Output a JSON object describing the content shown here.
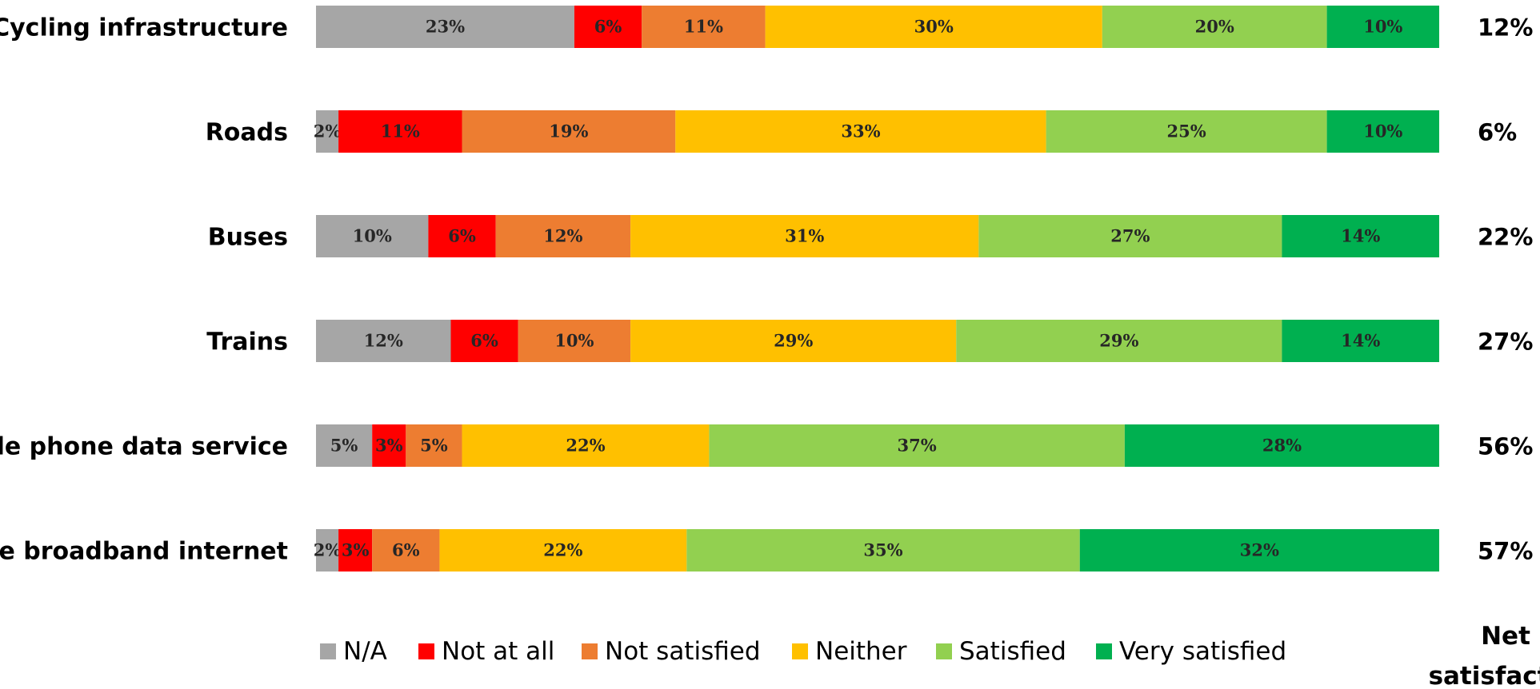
{
  "chart_data": {
    "type": "bar",
    "orientation": "horizontal",
    "stacked": true,
    "percent_stacked": true,
    "categories": [
      "Cycling infrastructure",
      "Roads",
      "Buses",
      "Trains",
      "Mobile phone data service",
      "Home broadband internet"
    ],
    "series": [
      {
        "name": "N/A",
        "color": "#a6a6a6",
        "labels": [
          "23%",
          "2%",
          "10%",
          "12%",
          "5%",
          "2%"
        ],
        "values": [
          23,
          2,
          10,
          12,
          5,
          2
        ]
      },
      {
        "name": "Not at all",
        "color": "#ff0000",
        "labels": [
          "6%",
          "11%",
          "6%",
          "6%",
          "3%",
          "3%"
        ],
        "values": [
          6,
          11,
          6,
          6,
          3,
          3
        ]
      },
      {
        "name": "Not satisfied",
        "color": "#ed7d31",
        "labels": [
          "11%",
          "19%",
          "12%",
          "10%",
          "5%",
          "6%"
        ],
        "values": [
          11,
          19,
          12,
          10,
          5,
          6
        ]
      },
      {
        "name": "Neither",
        "color": "#ffc000",
        "labels": [
          "30%",
          "33%",
          "31%",
          "29%",
          "22%",
          "22%"
        ],
        "values": [
          30,
          33,
          31,
          29,
          22,
          22
        ]
      },
      {
        "name": "Satisfied",
        "color": "#92d050",
        "labels": [
          "20%",
          "25%",
          "27%",
          "29%",
          "37%",
          "35%"
        ],
        "values": [
          20,
          25,
          27,
          29,
          37,
          35
        ]
      },
      {
        "name": "Very satisfied",
        "color": "#00b050",
        "labels": [
          "10%",
          "10%",
          "14%",
          "14%",
          "28%",
          "32%"
        ],
        "values": [
          10,
          10,
          14,
          14,
          28,
          32
        ]
      }
    ],
    "net_satisfaction": {
      "title": [
        "Net",
        "satisfaction"
      ],
      "labels": [
        "12%",
        "6%",
        "22%",
        "27%",
        "56%",
        "57%"
      ],
      "values": [
        12,
        6,
        22,
        27,
        56,
        57
      ]
    },
    "legend_position": "bottom",
    "grid": false
  }
}
